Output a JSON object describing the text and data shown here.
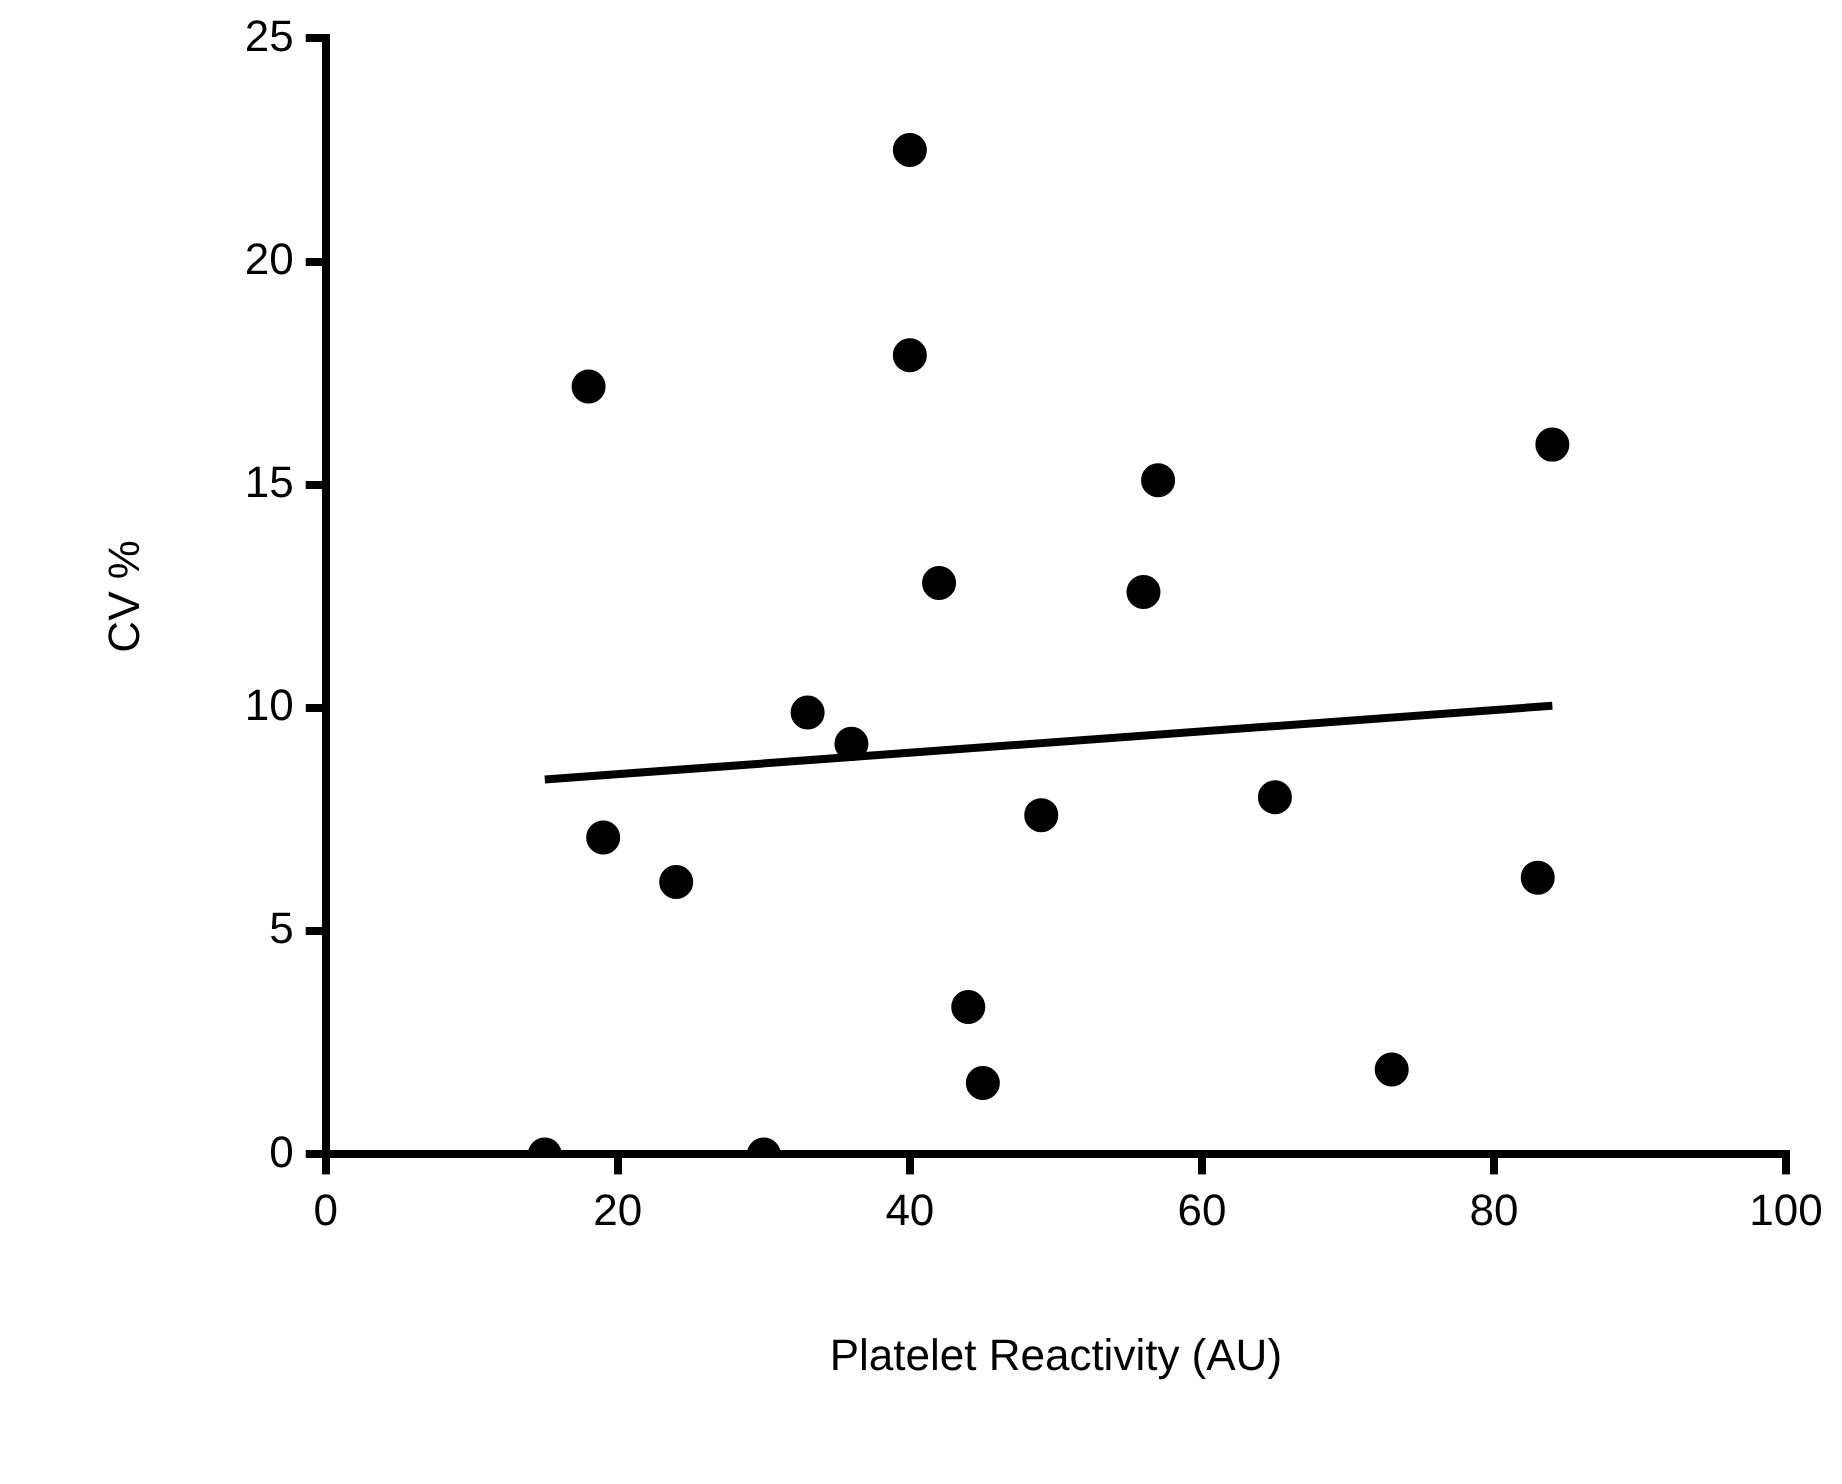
{
  "chart_data": {
    "type": "scatter",
    "xlabel": "Platelet Reactivity (AU)",
    "ylabel": "CV %",
    "xlim": [
      0,
      100
    ],
    "xticks": [
      0,
      20,
      40,
      60,
      80,
      100
    ],
    "ylim": [
      0,
      25
    ],
    "yticks": [
      0,
      5,
      10,
      15,
      20,
      25
    ],
    "grid": false,
    "legend": false,
    "series": [
      {
        "color": "#000000",
        "marker": "circle",
        "x": [
          15,
          18,
          19,
          24,
          30,
          33,
          36,
          40,
          40,
          42,
          44,
          45,
          49,
          56,
          57,
          65,
          73,
          83,
          84
        ],
        "values": [
          0,
          17.2,
          7.1,
          6.1,
          0,
          9.9,
          9.2,
          22.5,
          17.9,
          12.8,
          3.3,
          1.6,
          7.6,
          12.6,
          15.1,
          8.0,
          1.9,
          6.2,
          15.9
        ]
      },
      {
        "type": "line",
        "color": "#000000",
        "marker": "none",
        "line_style": "solid",
        "x": [
          15,
          84
        ],
        "values": [
          8.4,
          10.05
        ]
      }
    ]
  }
}
